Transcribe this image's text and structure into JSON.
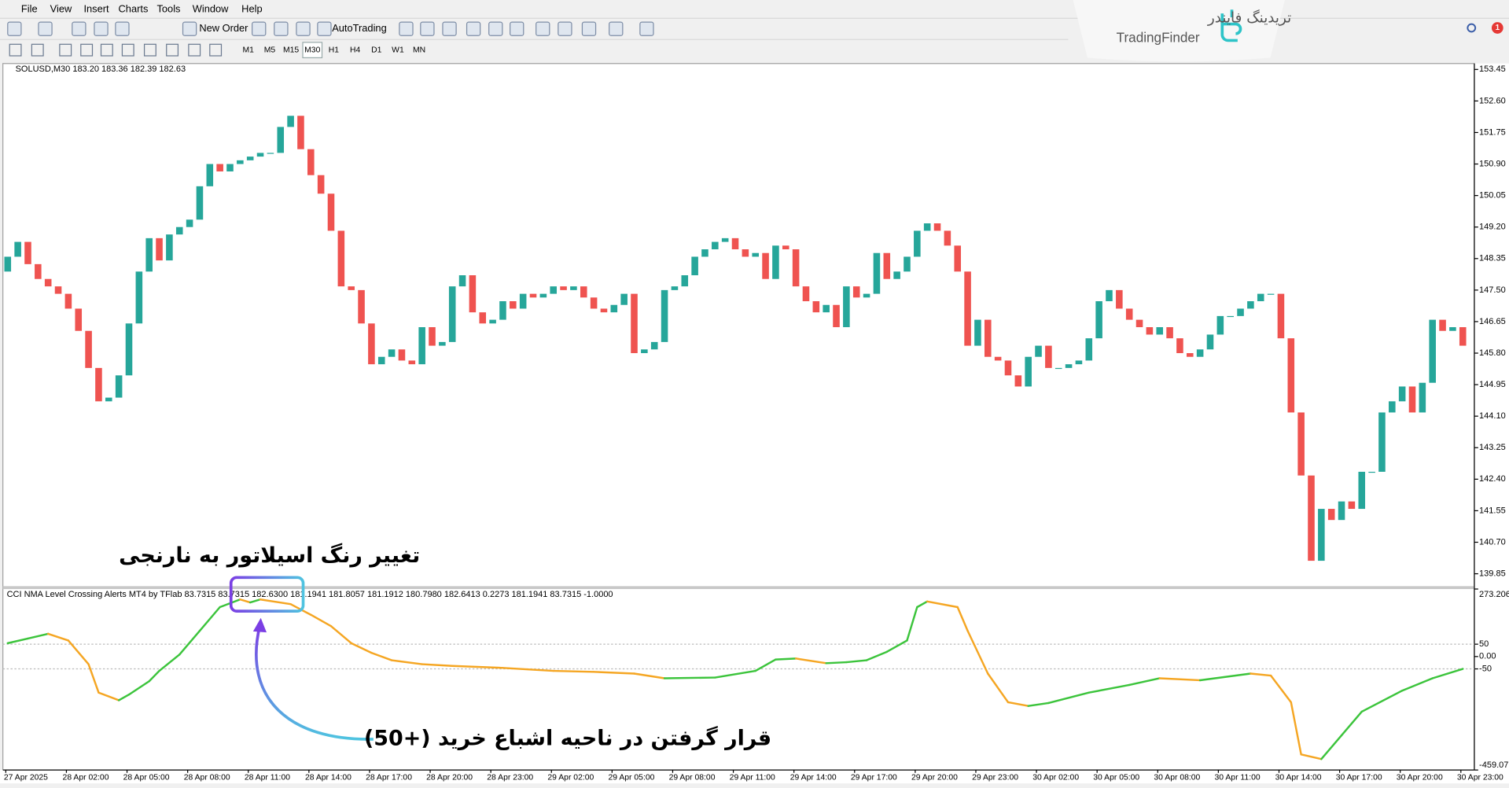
{
  "menu": [
    "File",
    "View",
    "Insert",
    "Charts",
    "Tools",
    "Window",
    "Help"
  ],
  "toolbar": {
    "new_order": "New Order",
    "autotrading": "AutoTrading",
    "timeframes": [
      "M1",
      "M5",
      "M15",
      "M30",
      "H1",
      "H4",
      "D1",
      "W1",
      "MN"
    ]
  },
  "logo": {
    "fa": "تریدینگ فایندر",
    "en": "TradingFinder"
  },
  "notification_count": "1",
  "annotations": {
    "title": "تغییر رنگ اسیلاتور به نارنجی",
    "note": "قرار گرفتن در ناحیه اشباع خرید (+50)"
  },
  "chart_data": [
    {
      "type": "candlestick",
      "title": "SOLUSD,M30  183.20 183.36 182.39 182.63",
      "bull_color": "#26a69a",
      "bear_color": "#ef5350",
      "ylim": [
        139.49,
        153.61
      ],
      "yticks": [
        153.45,
        {
          "value": 152.6,
          "label": "152.60"
        },
        151.75,
        {
          "value": 150.9,
          "label": "150.90"
        },
        150.05,
        {
          "value": 149.2,
          "label": "149.20"
        },
        148.35,
        {
          "value": 147.5,
          "label": "147.50"
        },
        146.65,
        {
          "value": 145.8,
          "label": "145.80"
        },
        144.95,
        {
          "value": 144.1,
          "label": "144.10"
        },
        143.25,
        {
          "value": 142.4,
          "label": "142.40"
        },
        141.55,
        {
          "value": 140.7,
          "label": "140.70"
        },
        139.85
      ],
      "first_open": 148.0,
      "close": [
        148.4,
        148.8,
        148.2,
        147.8,
        147.6,
        147.4,
        147.0,
        146.4,
        145.4,
        144.5,
        144.6,
        145.2,
        146.6,
        148.0,
        148.9,
        148.3,
        149.0,
        149.2,
        149.4,
        150.3,
        150.9,
        150.7,
        150.9,
        151.0,
        151.1,
        151.2,
        151.2,
        151.9,
        152.2,
        151.3,
        150.6,
        150.1,
        149.1,
        147.6,
        147.5,
        146.6,
        145.5,
        145.7,
        145.9,
        145.6,
        145.5,
        146.5,
        146.0,
        146.1,
        147.6,
        147.9,
        146.9,
        146.6,
        146.7,
        147.2,
        147.0,
        147.4,
        147.3,
        147.4,
        147.6,
        147.5,
        147.6,
        147.3,
        147.0,
        146.9,
        147.1,
        147.4,
        145.8,
        145.9,
        146.1,
        147.5,
        147.6,
        147.9,
        148.4,
        148.6,
        148.8,
        148.9,
        148.6,
        148.4,
        148.5,
        147.8,
        148.7,
        148.6,
        147.6,
        147.2,
        146.9,
        147.1,
        146.5,
        147.6,
        147.3,
        147.4,
        148.5,
        147.8,
        148.0,
        148.4,
        149.1,
        149.3,
        149.1,
        148.7,
        148.0,
        146.0,
        146.7,
        145.7,
        145.6,
        145.2,
        144.9,
        145.7,
        146.0,
        145.4,
        145.4,
        145.5,
        145.6,
        146.2,
        147.2,
        147.5,
        147.0,
        146.7,
        146.5,
        146.3,
        146.5,
        146.2,
        145.8,
        145.7,
        145.9,
        146.3,
        146.8,
        146.8,
        147.0,
        147.2,
        147.4,
        147.4,
        146.2,
        144.2,
        142.5,
        140.2,
        141.6,
        141.3,
        141.8,
        141.6,
        142.6,
        142.6,
        144.2,
        144.5,
        144.9,
        144.2,
        145.0,
        146.7,
        146.4,
        146.5,
        146.0
      ]
    },
    {
      "type": "line",
      "title": "CCI NMA Level Crossing Alerts MT4 by TFlab 83.7315 83.7315 182.6300 181.1941 181.8057 181.1912 180.7980 182.6413 0.2273 181.1941 83.7315 -1.0000",
      "up_color": "#3cc43c",
      "down_color": "#f5a623",
      "ylim": [
        -459.077,
        273.2064
      ],
      "yticks": [
        273.2064,
        50,
        {
          "value": 0,
          "label": "0.00"
        },
        -50,
        -459.077
      ],
      "levels": [
        50,
        -50
      ],
      "x": [
        0,
        2,
        4,
        6,
        8,
        9,
        11,
        12,
        14,
        15,
        17,
        19,
        21,
        23,
        24,
        25,
        28,
        30,
        32,
        34,
        36,
        38,
        41,
        44,
        49,
        54,
        58,
        62,
        65,
        70,
        74,
        76,
        78,
        81,
        83,
        85,
        87,
        89,
        90,
        91,
        94,
        95,
        97,
        99,
        101,
        103,
        107,
        111,
        114,
        118,
        123,
        125,
        127,
        128,
        130,
        132,
        134,
        138,
        141,
        144
      ],
      "values": [
        54,
        73,
        92,
        65,
        -31,
        -146,
        -177,
        -154,
        -100,
        -58,
        8,
        104,
        200,
        231,
        219,
        231,
        212,
        169,
        123,
        54,
        15,
        -15,
        -31,
        -38,
        -46,
        -58,
        -62,
        -69,
        -88,
        -85,
        -58,
        -12,
        -8,
        -27,
        -23,
        -15,
        19,
        65,
        200,
        223,
        200,
        104,
        -69,
        -185,
        -200,
        -188,
        -146,
        -115,
        -88,
        -96,
        -69,
        -77,
        -185,
        -396,
        -415,
        -319,
        -223,
        -138,
        -88,
        -50
      ],
      "x_labels": [
        "27 Apr 2025",
        "28 Apr 02:00",
        "28 Apr 05:00",
        "28 Apr 08:00",
        "28 Apr 11:00",
        "28 Apr 14:00",
        "28 Apr 17:00",
        "28 Apr 20:00",
        "28 Apr 23:00",
        "29 Apr 02:00",
        "29 Apr 05:00",
        "29 Apr 08:00",
        "29 Apr 11:00",
        "29 Apr 14:00",
        "29 Apr 17:00",
        "29 Apr 20:00",
        "29 Apr 23:00",
        "30 Apr 02:00",
        "30 Apr 05:00",
        "30 Apr 08:00",
        "30 Apr 11:00",
        "30 Apr 14:00",
        "30 Apr 17:00",
        "30 Apr 20:00",
        "30 Apr 23:00"
      ]
    }
  ]
}
